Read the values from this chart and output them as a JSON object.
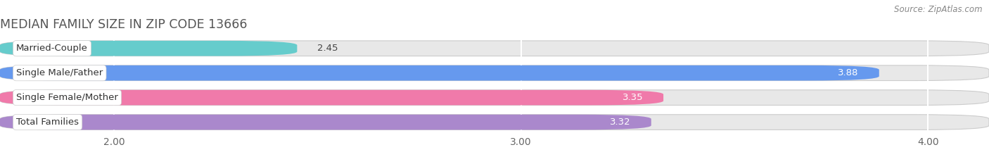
{
  "title": "MEDIAN FAMILY SIZE IN ZIP CODE 13666",
  "source": "Source: ZipAtlas.com",
  "categories": [
    "Married-Couple",
    "Single Male/Father",
    "Single Female/Mother",
    "Total Families"
  ],
  "values": [
    2.45,
    3.88,
    3.35,
    3.32
  ],
  "bar_colors": [
    "#66cccc",
    "#6699ee",
    "#f07aaa",
    "#aa88cc"
  ],
  "label_colors": [
    "#333333",
    "#ffffff",
    "#ffffff",
    "#ffffff"
  ],
  "value_label_color_0": "#333333",
  "xmin": 1.72,
  "xmax": 4.15,
  "xticks": [
    2.0,
    3.0,
    4.0
  ],
  "xtick_labels": [
    "2.00",
    "3.00",
    "4.00"
  ],
  "bar_height": 0.62,
  "title_fontsize": 12.5,
  "source_fontsize": 8.5,
  "label_fontsize": 9.5,
  "tick_fontsize": 10,
  "cat_fontsize": 9.5,
  "background_color": "#ffffff",
  "bar_bg_color": "#e8e8e8",
  "bar_bg_edge_color": "#cccccc",
  "grid_color": "#ffffff"
}
